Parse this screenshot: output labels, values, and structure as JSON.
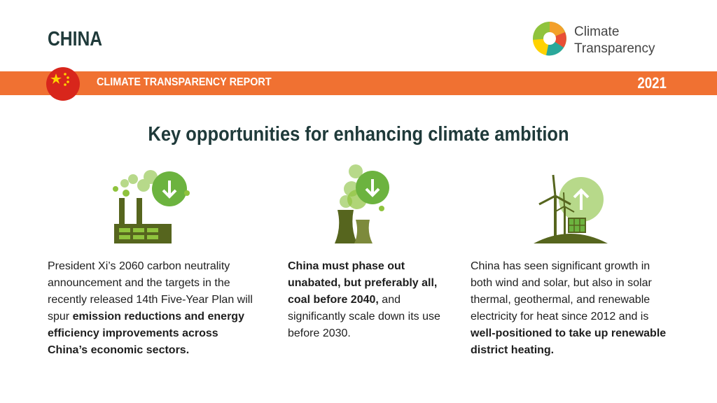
{
  "header": {
    "country": "CHINA",
    "logo": [
      "Climate",
      "Transparency"
    ]
  },
  "banner": {
    "title": "CLIMATE TRANSPARENCY REPORT",
    "year": "2021"
  },
  "heading": "Key opportunities for enhancing climate ambition",
  "columns": [
    {
      "segments": [
        {
          "text": "President Xi’s 2060 carbon neutrality announcement and the targets in the recently released 14th Five-Year Plan will spur ",
          "bold": false
        },
        {
          "text": "emission reductions and energy efficiency improvements across China’s economic sectors.",
          "bold": true
        }
      ]
    },
    {
      "segments": [
        {
          "text": "China must phase out unabated, but preferably all, coal before 2040,",
          "bold": true
        },
        {
          "text": " and significantly scale down its use before 2030.",
          "bold": false
        }
      ]
    },
    {
      "segments": [
        {
          "text": "China has seen significant growth in both wind and solar, but also in solar thermal, geothermal, and renewable electricity for heat since 2012 and is ",
          "bold": false
        },
        {
          "text": "well-positioned to take up renewable district heating.",
          "bold": true
        }
      ]
    }
  ]
}
